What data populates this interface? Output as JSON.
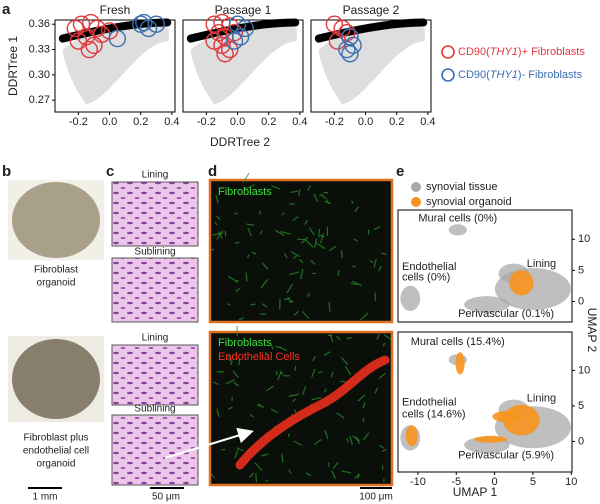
{
  "panel_labels": [
    "a",
    "b",
    "c",
    "d",
    "e"
  ],
  "trajectory": {
    "type": "scatter",
    "y_label": "DDRTree 1",
    "x_label": "DDRTree 2",
    "xlim": [
      -0.35,
      0.42
    ],
    "ylim": [
      0.256,
      0.365
    ],
    "xticks": [
      -0.2,
      {
        "value": 0,
        "label": "0.0"
      },
      0.2,
      0.4
    ],
    "yticks": [
      0.36,
      0.33,
      {
        "value": 0.3,
        "label": "0.30"
      },
      0.27
    ],
    "legend": [
      {
        "prefix": "CD90(",
        "gene": "THY1",
        "suffix": ")+ Fibroblasts",
        "color": "#e0393e"
      },
      {
        "prefix": "CD90(",
        "gene": "THY1",
        "suffix": ")- Fibroblasts",
        "color": "#3a6fb0"
      }
    ],
    "panels": [
      {
        "title": "Fresh",
        "series": [
          {
            "x": [
              -0.22,
              -0.18,
              -0.12,
              -0.08,
              -0.15,
              -0.05,
              -0.2,
              -0.1,
              0.0,
              -0.13
            ],
            "y": [
              0.355,
              0.36,
              0.362,
              0.355,
              0.345,
              0.348,
              0.34,
              0.335,
              0.352,
              0.33
            ]
          },
          {
            "x": [
              0.2,
              0.25,
              0.3,
              0.22,
              0.05
            ],
            "y": [
              0.36,
              0.355,
              0.36,
              0.362,
              0.343
            ]
          }
        ]
      },
      {
        "title": "Passage 1",
        "series": [
          {
            "x": [
              -0.15,
              -0.1,
              -0.05,
              -0.12,
              -0.08,
              -0.02,
              -0.15,
              -0.1,
              -0.05,
              -0.08
            ],
            "y": [
              0.36,
              0.362,
              0.358,
              0.35,
              0.345,
              0.35,
              0.34,
              0.335,
              0.33,
              0.325
            ]
          },
          {
            "x": [
              0.0,
              0.05,
              0.02,
              -0.02
            ],
            "y": [
              0.36,
              0.355,
              0.345,
              0.34
            ]
          }
        ]
      },
      {
        "title": "Passage 2",
        "series": [
          {
            "x": [
              -0.2,
              -0.15,
              -0.12,
              -0.1,
              -0.18
            ],
            "y": [
              0.36,
              0.355,
              0.35,
              0.345,
              0.34
            ]
          },
          {
            "x": [
              -0.1,
              -0.08,
              -0.12,
              -0.1
            ],
            "y": [
              0.345,
              0.335,
              0.33,
              0.325
            ]
          }
        ]
      }
    ]
  },
  "panel_b": {
    "top_caption": [
      "Fibroblast",
      "organoid"
    ],
    "bottom_caption": [
      "Fibroblast plus",
      "endothelial cell",
      "organoid"
    ],
    "scale": "1 mm"
  },
  "panel_c": {
    "titles": [
      "Lining",
      "Sublining",
      "Lining",
      "Sublining"
    ],
    "scale": "50 μm"
  },
  "panel_d": {
    "top_labels": [
      "Fibroblasts"
    ],
    "bottom_labels": [
      "Fibroblasts",
      "Endothelial Cells"
    ],
    "scale": "100 μm"
  },
  "umap": {
    "x_label": "UMAP 1",
    "y_label": "UMAP 2",
    "xlim": [
      -12.6,
      10.1
    ],
    "xticks": [
      -10,
      -5,
      0,
      5,
      10
    ],
    "legend": [
      {
        "name": "synovial tissue",
        "color": "#aaaaaa"
      },
      {
        "name": "synovial organoid",
        "color": "#f7941d"
      }
    ],
    "plots": [
      {
        "ylim": [
          -3.3,
          14.7
        ],
        "yticks": [
          0,
          5,
          10
        ],
        "annotations": [
          "Mural cells (0%)",
          "Endothelial",
          "cells (0%)",
          "Lining",
          "Perivascular (0.1%)"
        ]
      },
      {
        "ylim": [
          -4.3,
          15.4
        ],
        "yticks": [
          0,
          5,
          10
        ],
        "annotations": [
          "Mural cells (15.4%)",
          "Endothelial",
          "cells (14.6%)",
          "Lining",
          "Perivascular (5.9%)"
        ]
      }
    ]
  }
}
